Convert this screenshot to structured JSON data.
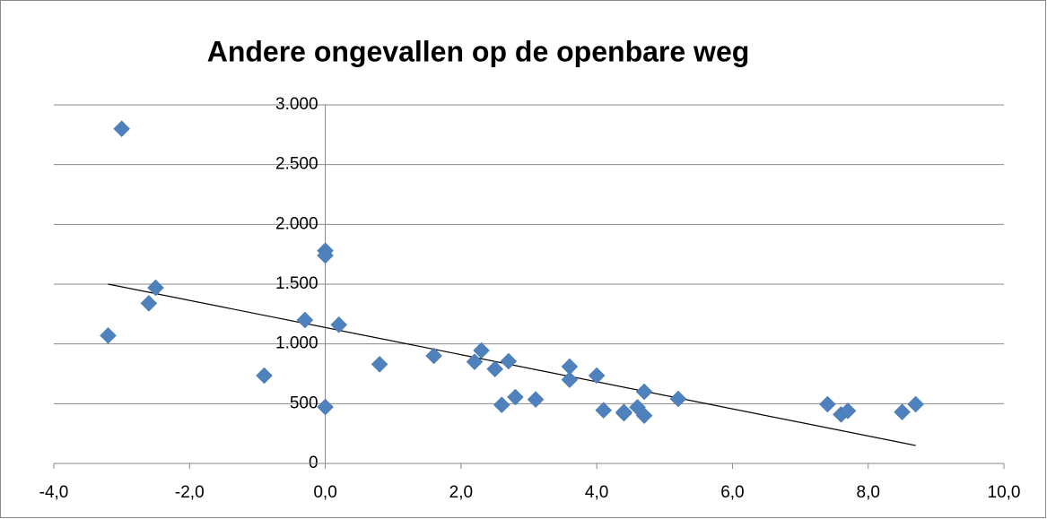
{
  "chart_data": {
    "type": "scatter",
    "title": "Andere ongevallen op de openbare weg",
    "x": [
      -3.0,
      -3.2,
      -2.6,
      -2.5,
      -0.9,
      -0.3,
      0.0,
      0.0,
      0.0,
      0.2,
      0.8,
      1.6,
      2.2,
      2.3,
      2.5,
      2.7,
      2.6,
      2.8,
      3.1,
      3.6,
      3.6,
      4.0,
      4.1,
      4.4,
      4.4,
      4.6,
      4.7,
      4.7,
      5.2,
      7.4,
      7.6,
      7.7,
      8.5,
      8.7
    ],
    "values": [
      2800,
      1070,
      1340,
      1470,
      735,
      1200,
      1780,
      1740,
      472,
      1160,
      830,
      900,
      850,
      945,
      790,
      855,
      490,
      555,
      535,
      810,
      700,
      735,
      445,
      420,
      430,
      470,
      600,
      400,
      540,
      495,
      410,
      440,
      430,
      495
    ],
    "color": "#4f81bd",
    "trendline": {
      "x": [
        -3.2,
        8.7
      ],
      "values": [
        1500,
        150
      ],
      "color": "#000000"
    },
    "xlim": [
      -4,
      10
    ],
    "xticks": [
      {
        "value": -4,
        "label": "-4,0"
      },
      {
        "value": -2,
        "label": "-2,0"
      },
      {
        "value": 0,
        "label": "0,0"
      },
      {
        "value": 2,
        "label": "2,0"
      },
      {
        "value": 4,
        "label": "4,0"
      },
      {
        "value": 6,
        "label": "6,0"
      },
      {
        "value": 8,
        "label": "8,0"
      },
      {
        "value": 10,
        "label": "10,0"
      }
    ],
    "ylim": [
      0,
      3000
    ],
    "yticks": [
      0,
      500,
      {
        "value": 1000,
        "label": "1.000"
      },
      {
        "value": 1500,
        "label": "1.500"
      },
      {
        "value": 2000,
        "label": "2.000"
      },
      {
        "value": 2500,
        "label": "2.500"
      },
      {
        "value": 3000,
        "label": "3.000"
      }
    ],
    "grid": true
  }
}
